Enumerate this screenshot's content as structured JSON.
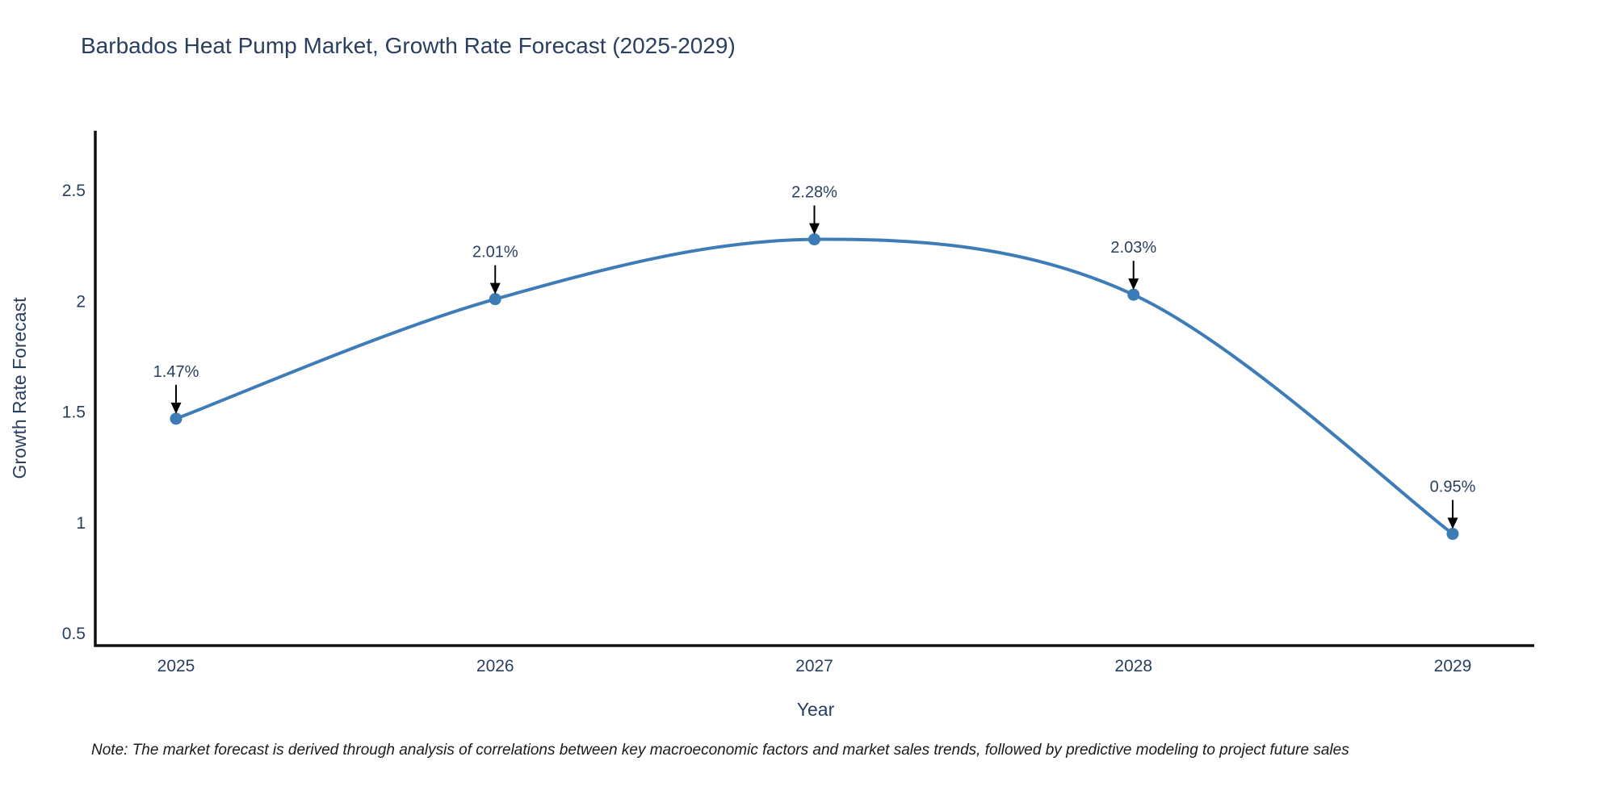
{
  "page": {
    "background": "#ffffff"
  },
  "chart_data": {
    "type": "line",
    "title": "Barbados Heat Pump Market, Growth Rate Forecast (2025-2029)",
    "xlabel": "Year",
    "ylabel": "Growth Rate Forecast",
    "categories": [
      "2025",
      "2026",
      "2027",
      "2028",
      "2029"
    ],
    "values": [
      1.47,
      2.01,
      2.28,
      2.03,
      0.95
    ],
    "point_labels": [
      "1.47%",
      "2.01%",
      "2.28%",
      "2.03%",
      "0.95%"
    ],
    "yticks": [
      0.5,
      1,
      1.5,
      2,
      2.5
    ],
    "ylim": [
      0.445,
      2.77
    ],
    "line_shape": "spline",
    "grid": false,
    "legend": "none",
    "markers": true,
    "colors": {
      "line": "#3E7CB8",
      "marker": "#3E7CB8",
      "text": "#2a3f5f",
      "axis": "#111111",
      "arrow": "#000000",
      "note": "#1a1a1a",
      "background": "#ffffff"
    }
  },
  "note": {
    "text": "Note: The market forecast is derived through analysis of correlations between key macroeconomic factors and market sales trends, followed by predictive modeling to project future sales"
  }
}
